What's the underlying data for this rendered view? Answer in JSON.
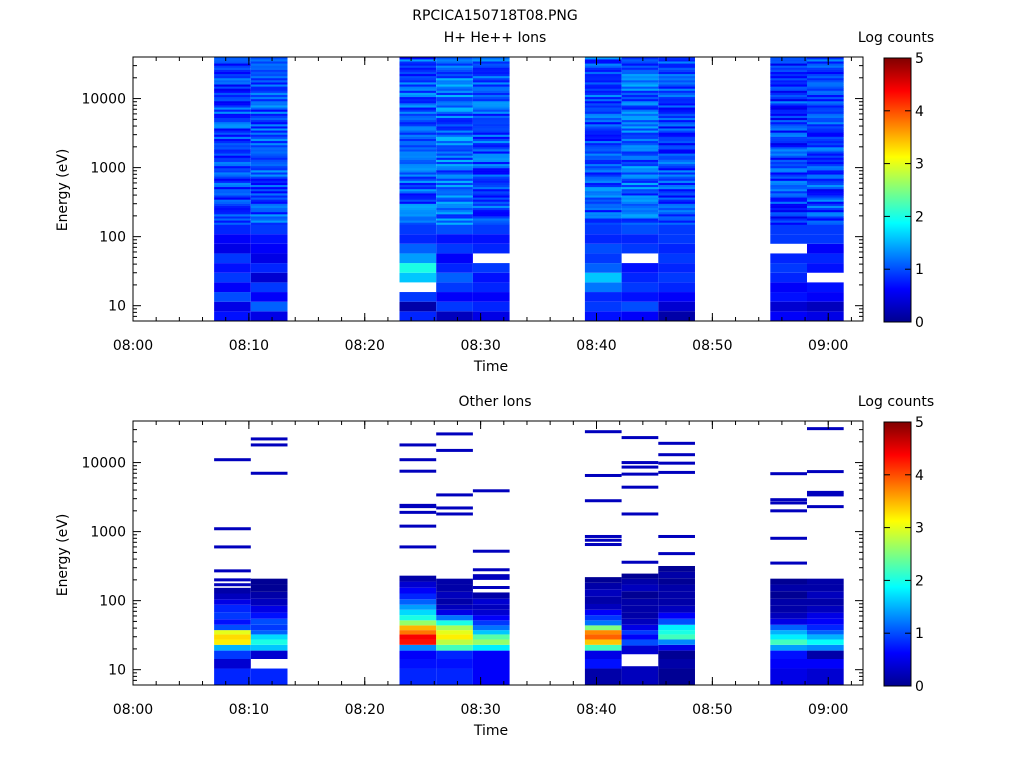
{
  "figure": {
    "title": "RPCICA150718T08.PNG"
  },
  "chart_data": [
    {
      "type": "heatmap",
      "title": "H+ He++ Ions",
      "xlabel": "Time",
      "ylabel": "Energy (eV)",
      "x_scale": "time",
      "y_scale": "log",
      "xlim": [
        "08:00",
        "09:03"
      ],
      "ylim": [
        6,
        40000
      ],
      "x_ticks": [
        "08:00",
        "08:10",
        "08:20",
        "08:30",
        "08:40",
        "08:50",
        "09:00"
      ],
      "y_ticks": [
        "10",
        "100",
        "1000",
        "10000"
      ],
      "colorbar": {
        "label": "Log counts",
        "range": [
          0,
          5
        ],
        "ticks": [
          "0",
          "1",
          "2",
          "3",
          "4",
          "5"
        ],
        "colormap": "jet"
      },
      "sweeps": [
        {
          "start": "08:07",
          "end": "08:10:10",
          "low_energy_profile": [
            0.7,
            0.5,
            1.0,
            0.6,
            0.9,
            0.7,
            0.9,
            0.5,
            0.6,
            0.8
          ],
          "high_energy_mean": 0.95
        },
        {
          "start": "08:10:10",
          "end": "08:13:20",
          "low_energy_profile": [
            0.5,
            1.1,
            0.6,
            0.9,
            0.4,
            0.8,
            0.5,
            0.6,
            0.7,
            0.9
          ],
          "high_energy_mean": 1.0
        },
        {
          "start": "08:23",
          "end": "08:26:10",
          "low_energy_profile": [
            0.8,
            0.2,
            0.9,
            null,
            1.6,
            2.0,
            1.4,
            1.1,
            0.8,
            0.9
          ],
          "high_energy_mean": 1.05
        },
        {
          "start": "08:26:10",
          "end": "08:29:20",
          "low_energy_profile": [
            0.3,
            0.9,
            0.6,
            0.9,
            1.1,
            0.8,
            0.6,
            0.9,
            0.7,
            1.0
          ],
          "high_energy_mean": 1.15
        },
        {
          "start": "08:29:20",
          "end": "08:32:30",
          "low_energy_profile": [
            0.5,
            0.8,
            0.6,
            0.8,
            0.7,
            0.9,
            null,
            0.8,
            0.7,
            0.9
          ],
          "high_energy_mean": 1.0
        },
        {
          "start": "08:39",
          "end": "08:42:10",
          "low_energy_profile": [
            0.7,
            0.9,
            0.8,
            1.2,
            1.6,
            1.1,
            0.9,
            1.0,
            0.8,
            0.9
          ],
          "high_energy_mean": 1.0
        },
        {
          "start": "08:42:10",
          "end": "08:45:20",
          "low_energy_profile": [
            0.6,
            1.0,
            0.7,
            0.9,
            0.8,
            0.7,
            null,
            0.9,
            0.8,
            1.0
          ],
          "high_energy_mean": 1.1
        },
        {
          "start": "08:45:20",
          "end": "08:48:30",
          "low_energy_profile": [
            0.2,
            0.4,
            0.6,
            0.8,
            0.9,
            0.8,
            0.9,
            0.8,
            0.9,
            0.9
          ],
          "high_energy_mean": 0.95
        },
        {
          "start": "08:55",
          "end": "08:58:10",
          "low_energy_profile": [
            0.6,
            0.4,
            0.7,
            0.6,
            0.8,
            0.9,
            0.8,
            null,
            0.9,
            0.9
          ],
          "high_energy_mean": 0.9
        },
        {
          "start": "08:58:10",
          "end": "09:01:20",
          "low_energy_profile": [
            0.5,
            0.3,
            0.6,
            0.7,
            null,
            0.7,
            0.8,
            0.6,
            0.9,
            0.9
          ],
          "high_energy_mean": 0.95
        }
      ]
    },
    {
      "type": "heatmap",
      "title": "Other Ions",
      "xlabel": "Time",
      "ylabel": "Energy (eV)",
      "x_scale": "time",
      "y_scale": "log",
      "xlim": [
        "08:00",
        "09:03"
      ],
      "ylim": [
        6,
        40000
      ],
      "x_ticks": [
        "08:00",
        "08:10",
        "08:20",
        "08:30",
        "08:40",
        "08:50",
        "09:00"
      ],
      "y_ticks": [
        "10",
        "100",
        "1000",
        "10000"
      ],
      "colorbar": {
        "label": "Log counts",
        "range": [
          0,
          5
        ],
        "ticks": [
          "0",
          "1",
          "2",
          "3",
          "4",
          "5"
        ],
        "colormap": "jet"
      },
      "sweeps": [
        {
          "start": "08:07",
          "end": "08:10:10",
          "low_energy": [
            [
              9,
              0.8
            ],
            [
              12,
              0.4
            ],
            [
              17,
              0.9
            ],
            [
              21,
              1.5
            ],
            [
              25,
              3.2
            ],
            [
              30,
              3.3
            ],
            [
              35,
              3.0
            ],
            [
              40,
              1.0
            ],
            [
              50,
              0.7
            ],
            [
              58,
              0.9
            ],
            [
              80,
              0.8
            ],
            [
              95,
              0.5
            ],
            [
              115,
              0.3
            ],
            [
              140,
              0.2
            ]
          ],
          "high_energy_lines": [
            170,
            200,
            270,
            600,
            1100,
            11000
          ]
        },
        {
          "start": "08:10:10",
          "end": "08:13:20",
          "low_energy": [
            [
              9,
              0.8
            ],
            [
              12,
              null
            ],
            [
              17,
              0.4
            ],
            [
              21,
              1.6
            ],
            [
              25,
              2.0
            ],
            [
              30,
              1.7
            ],
            [
              35,
              1.1
            ],
            [
              40,
              0.9
            ],
            [
              50,
              1.0
            ],
            [
              60,
              0.7
            ],
            [
              75,
              0.5
            ],
            [
              95,
              0.3
            ],
            [
              120,
              0.2
            ],
            [
              150,
              0.1
            ],
            [
              190,
              0.1
            ]
          ],
          "high_energy_lines": [
            7000,
            18000,
            22000
          ]
        },
        {
          "start": "08:23",
          "end": "08:26:10",
          "low_energy": [
            [
              9,
              0.8
            ],
            [
              12,
              0.7
            ],
            [
              17,
              0.6
            ],
            [
              21,
              1.3
            ],
            [
              25,
              4.3
            ],
            [
              30,
              4.4
            ],
            [
              35,
              3.8
            ],
            [
              40,
              3.5
            ],
            [
              48,
              2.6
            ],
            [
              56,
              2.0
            ],
            [
              68,
              1.7
            ],
            [
              80,
              1.4
            ],
            [
              95,
              1.1
            ],
            [
              115,
              0.8
            ],
            [
              140,
              0.6
            ],
            [
              170,
              0.4
            ],
            [
              210,
              0.2
            ]
          ],
          "high_energy_lines": [
            600,
            1200,
            1900,
            2300,
            2400,
            7500,
            11000,
            18000
          ]
        },
        {
          "start": "08:26:10",
          "end": "08:29:20",
          "low_energy": [
            [
              9,
              0.8
            ],
            [
              12,
              0.7
            ],
            [
              17,
              0.8
            ],
            [
              21,
              2.2
            ],
            [
              25,
              2.8
            ],
            [
              30,
              3.2
            ],
            [
              35,
              3.0
            ],
            [
              40,
              2.7
            ],
            [
              48,
              2.0
            ],
            [
              56,
              1.2
            ],
            [
              68,
              0.5
            ],
            [
              80,
              0.3
            ],
            [
              95,
              0.2
            ],
            [
              120,
              0.3
            ],
            [
              150,
              0.2
            ],
            [
              190,
              0.2
            ]
          ],
          "high_energy_lines": [
            1800,
            2200,
            3400,
            15000,
            26000
          ]
        },
        {
          "start": "08:29:20",
          "end": "08:32:30",
          "low_energy": [
            [
              17,
              0.6
            ],
            [
              21,
              1.8
            ],
            [
              25,
              2.6
            ],
            [
              30,
              2.3
            ],
            [
              35,
              1.6
            ],
            [
              40,
              1.2
            ],
            [
              48,
              0.9
            ],
            [
              56,
              0.6
            ],
            [
              68,
              0.4
            ],
            [
              80,
              0.3
            ],
            [
              95,
              0.4
            ],
            [
              120,
              0.2
            ]
          ],
          "high_energy_lines": [
            155,
            210,
            230,
            280,
            520,
            3900
          ]
        },
        {
          "start": "08:39",
          "end": "08:42:10",
          "low_energy": [
            [
              9,
              0.2
            ],
            [
              12,
              0.7
            ],
            [
              17,
              0.5
            ],
            [
              21,
              2.2
            ],
            [
              25,
              3.4
            ],
            [
              30,
              3.9
            ],
            [
              35,
              3.7
            ],
            [
              40,
              2.5
            ],
            [
              48,
              1.2
            ],
            [
              56,
              0.9
            ],
            [
              68,
              0.6
            ],
            [
              80,
              0.3
            ],
            [
              100,
              0.2
            ],
            [
              130,
              0.3
            ],
            [
              165,
              0.2
            ],
            [
              200,
              0.1
            ]
          ],
          "high_energy_lines": [
            650,
            750,
            850,
            2800,
            6500,
            28000
          ]
        },
        {
          "start": "08:42:10",
          "end": "08:45:20",
          "low_energy": [
            [
              9,
              0.3
            ],
            [
              14,
              null
            ],
            [
              20,
              0.4
            ],
            [
              25,
              1.0
            ],
            [
              30,
              0.6
            ],
            [
              35,
              0.9
            ],
            [
              40,
              0.5
            ],
            [
              50,
              0.3
            ],
            [
              60,
              0.2
            ],
            [
              75,
              0.2
            ],
            [
              95,
              0.2
            ],
            [
              120,
              0.1
            ],
            [
              155,
              0.3
            ],
            [
              190,
              0.2
            ],
            [
              225,
              0.1
            ]
          ],
          "high_energy_lines": [
            360,
            1800,
            4400,
            6800,
            8600,
            10000,
            23000
          ]
        },
        {
          "start": "08:45:20",
          "end": "08:48:30",
          "low_energy": [
            [
              9,
              0.1
            ],
            [
              12,
              0.2
            ],
            [
              17,
              0.1
            ],
            [
              21,
              0.5
            ],
            [
              25,
              1.3
            ],
            [
              30,
              2.2
            ],
            [
              35,
              2.0
            ],
            [
              40,
              1.8
            ],
            [
              50,
              1.0
            ],
            [
              60,
              0.6
            ],
            [
              75,
              0.3
            ],
            [
              95,
              0.2
            ],
            [
              120,
              0.2
            ],
            [
              155,
              0.2
            ],
            [
              190,
              0.1
            ],
            [
              235,
              0.2
            ],
            [
              290,
              0.1
            ]
          ],
          "high_energy_lines": [
            480,
            850,
            7200,
            9800,
            13000,
            19000
          ]
        },
        {
          "start": "08:55",
          "end": "08:58:10",
          "low_energy": [
            [
              9,
              0.5
            ],
            [
              12,
              0.6
            ],
            [
              17,
              0.7
            ],
            [
              21,
              1.4
            ],
            [
              25,
              2.2
            ],
            [
              30,
              1.8
            ],
            [
              35,
              1.5
            ],
            [
              40,
              1.1
            ],
            [
              50,
              0.5
            ],
            [
              60,
              0.3
            ],
            [
              75,
              0.2
            ],
            [
              95,
              0.2
            ],
            [
              120,
              0.1
            ],
            [
              155,
              0.2
            ],
            [
              190,
              0.1
            ]
          ],
          "high_energy_lines": [
            350,
            800,
            2000,
            2600,
            2900,
            6900
          ]
        },
        {
          "start": "08:58:10",
          "end": "09:01:20",
          "low_energy": [
            [
              9,
              0.4
            ],
            [
              12,
              0.6
            ],
            [
              17,
              0.2
            ],
            [
              21,
              1.3
            ],
            [
              25,
              1.9
            ],
            [
              30,
              1.5
            ],
            [
              35,
              1.1
            ],
            [
              40,
              0.8
            ],
            [
              50,
              0.6
            ],
            [
              60,
              0.5
            ],
            [
              75,
              0.3
            ],
            [
              95,
              0.2
            ],
            [
              120,
              0.3
            ],
            [
              155,
              0.2
            ],
            [
              190,
              0.2
            ]
          ],
          "high_energy_lines": [
            2300,
            3400,
            3700,
            7400,
            31000
          ]
        }
      ]
    }
  ]
}
